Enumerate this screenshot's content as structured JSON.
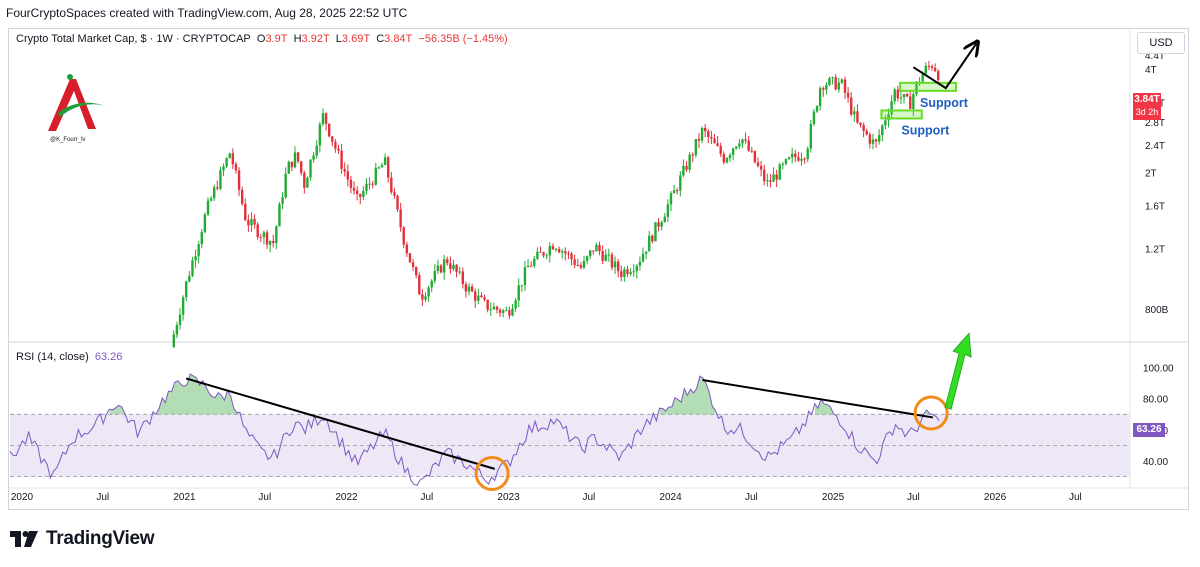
{
  "header": {
    "attribution": "FourCryptoSpaces created with TradingView.com, Aug 28, 2025 22:52 UTC"
  },
  "legend": {
    "symbol": "Crypto Total Market Cap, $ · 1W · CRYPTOCAP",
    "o_label": "O",
    "o_value": "3.9T",
    "h_label": "H",
    "h_value": "3.92T",
    "l_label": "L",
    "l_value": "3.69T",
    "c_label": "C",
    "c_value": "3.84T",
    "change": "−56.35B (−1.45%)"
  },
  "currency": "USD",
  "price_tag": {
    "price": "3.84T",
    "countdown": "3d 2h"
  },
  "watermark": {
    "handle": "@K_Fourr_lv"
  },
  "rsi": {
    "label": "RSI (14, close)",
    "value": "63.26",
    "tag": "63.26"
  },
  "footer": {
    "brand": "TradingView"
  },
  "colors": {
    "up": "#26a69a",
    "down": "#ef5350",
    "candle_up": "#22ab34",
    "candle_down": "#e2313b",
    "rsi_line": "#7e57c2",
    "rsi_band": "#ede7f6",
    "rsi_ob_fill": "#81c784",
    "support_box": "#66dd22",
    "orange_circle": "#f08c1a",
    "arrow_green": "#33dd22"
  },
  "chart_data": [
    {
      "type": "candlestick",
      "title": "Crypto Total Market Cap, $ · 1W · CRYPTOCAP",
      "y_scale": "log",
      "ylim": [
        0.65,
        4.7
      ],
      "y_ticks": [
        {
          "label": "4.4T",
          "value": 4.4
        },
        {
          "label": "4T",
          "value": 4.0
        },
        {
          "label": "3.2T",
          "value": 3.2
        },
        {
          "label": "2.8T",
          "value": 2.8
        },
        {
          "label": "2.4T",
          "value": 2.4
        },
        {
          "label": "2T",
          "value": 2.0
        },
        {
          "label": "1.6T",
          "value": 1.6
        },
        {
          "label": "1.2T",
          "value": 1.2
        },
        {
          "label": "800B",
          "value": 0.8
        }
      ],
      "x_ticks": [
        "2020",
        "Jul",
        "2021",
        "Jul",
        "2022",
        "Jul",
        "2023",
        "Jul",
        "2024",
        "Jul",
        "2025",
        "Jul",
        "2026",
        "Jul"
      ],
      "x_tick_dates": [
        "2020-01-01",
        "2020-07-01",
        "2021-01-01",
        "2021-07-01",
        "2022-01-01",
        "2022-07-01",
        "2023-01-01",
        "2023-07-01",
        "2024-01-01",
        "2024-07-01",
        "2025-01-01",
        "2025-07-01",
        "2026-01-01",
        "2026-07-01"
      ],
      "xlim": [
        "2019-12-05",
        "2026-11-01"
      ],
      "price_path": [
        [
          "2020-12-01",
          0.62
        ],
        [
          "2021-01-05",
          0.95
        ],
        [
          "2021-02-20",
          1.55
        ],
        [
          "2021-03-15",
          1.85
        ],
        [
          "2021-04-14",
          2.3
        ],
        [
          "2021-05-20",
          1.45
        ],
        [
          "2021-06-22",
          1.33
        ],
        [
          "2021-07-20",
          1.25
        ],
        [
          "2021-08-20",
          2.05
        ],
        [
          "2021-09-10",
          2.25
        ],
        [
          "2021-09-28",
          1.85
        ],
        [
          "2021-11-10",
          2.95
        ],
        [
          "2021-12-10",
          2.3
        ],
        [
          "2022-01-24",
          1.65
        ],
        [
          "2022-03-28",
          2.15
        ],
        [
          "2022-05-12",
          1.25
        ],
        [
          "2022-06-18",
          0.87
        ],
        [
          "2022-08-14",
          1.12
        ],
        [
          "2022-09-30",
          0.92
        ],
        [
          "2022-11-09",
          0.82
        ],
        [
          "2022-12-30",
          0.78
        ],
        [
          "2023-02-15",
          1.07
        ],
        [
          "2023-04-14",
          1.25
        ],
        [
          "2023-06-15",
          1.05
        ],
        [
          "2023-07-14",
          1.22
        ],
        [
          "2023-09-11",
          1.02
        ],
        [
          "2023-10-20",
          1.1
        ],
        [
          "2023-12-31",
          1.65
        ],
        [
          "2024-03-13",
          2.65
        ],
        [
          "2024-05-01",
          2.2
        ],
        [
          "2024-06-07",
          2.55
        ],
        [
          "2024-08-05",
          1.85
        ],
        [
          "2024-10-01",
          2.2
        ],
        [
          "2024-11-01",
          2.3
        ],
        [
          "2024-12-05",
          3.65
        ],
        [
          "2025-01-20",
          3.62
        ],
        [
          "2025-02-25",
          2.75
        ],
        [
          "2025-04-07",
          2.4
        ],
        [
          "2025-05-20",
          3.45
        ],
        [
          "2025-06-22",
          3.15
        ],
        [
          "2025-07-10",
          3.65
        ],
        [
          "2025-07-25",
          3.95
        ],
        [
          "2025-08-14",
          4.15
        ],
        [
          "2025-08-28",
          3.84
        ]
      ],
      "support_levels": [
        {
          "label": "Support",
          "value": 2.95,
          "from": "2025-04-20",
          "to": "2025-07-20"
        },
        {
          "label": "Support",
          "value": 3.55,
          "from": "2025-06-01",
          "to": "2025-10-05"
        }
      ],
      "projection_arrow": [
        [
          "2025-07-01",
          4.05
        ],
        [
          "2025-09-12",
          3.52
        ],
        [
          "2025-11-20",
          4.75
        ]
      ],
      "last": {
        "open": 3.9,
        "high": 3.92,
        "low": 3.69,
        "close": 3.84
      }
    },
    {
      "type": "line",
      "title": "RSI (14, close)",
      "ylim": [
        24,
        110
      ],
      "y_ticks": [
        100,
        80,
        60,
        40
      ],
      "y_tick_labels": [
        "100.00",
        "80.00",
        "60.00",
        "40.00"
      ],
      "bands": [
        30,
        70
      ],
      "rsi_path": [
        [
          "2019-12-05",
          42
        ],
        [
          "2020-01-15",
          55
        ],
        [
          "2020-03-12",
          30
        ],
        [
          "2020-04-25",
          55
        ],
        [
          "2020-06-15",
          63
        ],
        [
          "2020-08-01",
          78
        ],
        [
          "2020-09-20",
          58
        ],
        [
          "2020-11-15",
          80
        ],
        [
          "2021-01-05",
          93
        ],
        [
          "2021-02-20",
          88
        ],
        [
          "2021-03-15",
          80
        ],
        [
          "2021-04-14",
          84
        ],
        [
          "2021-05-20",
          58
        ],
        [
          "2021-06-25",
          45
        ],
        [
          "2021-07-20",
          42
        ],
        [
          "2021-09-05",
          65
        ],
        [
          "2021-09-28",
          60
        ],
        [
          "2021-11-10",
          70
        ],
        [
          "2021-12-20",
          52
        ],
        [
          "2022-01-24",
          38
        ],
        [
          "2022-03-28",
          58
        ],
        [
          "2022-05-12",
          35
        ],
        [
          "2022-06-18",
          25
        ],
        [
          "2022-08-14",
          45
        ],
        [
          "2022-09-30",
          38
        ],
        [
          "2022-11-12",
          28
        ],
        [
          "2022-12-30",
          38
        ],
        [
          "2023-02-15",
          60
        ],
        [
          "2023-04-14",
          66
        ],
        [
          "2023-06-15",
          48
        ],
        [
          "2023-07-14",
          55
        ],
        [
          "2023-09-11",
          42
        ],
        [
          "2023-10-30",
          62
        ],
        [
          "2023-12-31",
          75
        ],
        [
          "2024-03-13",
          93
        ],
        [
          "2024-05-01",
          62
        ],
        [
          "2024-06-07",
          60
        ],
        [
          "2024-08-05",
          42
        ],
        [
          "2024-10-01",
          54
        ],
        [
          "2024-12-05",
          78
        ],
        [
          "2025-01-20",
          66
        ],
        [
          "2025-02-25",
          50
        ],
        [
          "2025-04-07",
          40
        ],
        [
          "2025-05-20",
          64
        ],
        [
          "2025-06-22",
          56
        ],
        [
          "2025-07-25",
          68
        ],
        [
          "2025-08-14",
          70
        ],
        [
          "2025-08-28",
          63.26
        ]
      ],
      "trendlines": [
        {
          "from": [
            "2021-01-05",
            93
          ],
          "to": [
            "2022-12-01",
            35
          ]
        },
        {
          "from": [
            "2024-03-13",
            92
          ],
          "to": [
            "2025-08-14",
            68
          ]
        }
      ],
      "circles": [
        "2022-11-25",
        "2025-08-10"
      ],
      "current": 63.26
    }
  ]
}
